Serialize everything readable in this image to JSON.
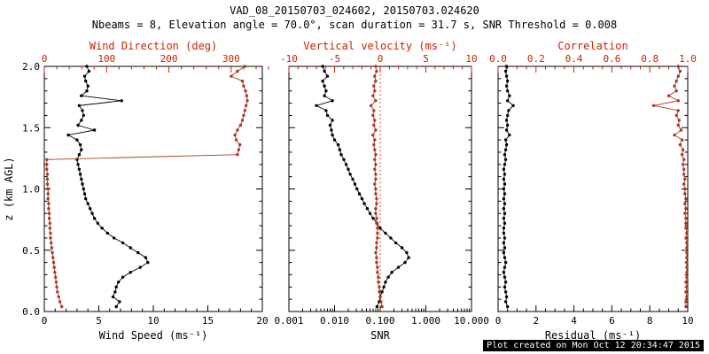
{
  "title": "VAD_08_20150703_024602, 20150703.024620",
  "subtitle": "Nbeams = 8, Elevation angle = 70.0°, scan duration = 31.7 s, SNR Threshold = 0.008",
  "footer": "Plot created on Mon Oct 12 20:34:47 2015",
  "colors": {
    "axis_red": "#cc2200",
    "series_red": "#a83a22",
    "series_black": "#000000",
    "frame": "#000000"
  },
  "chart_data": [
    {
      "type": "scatter",
      "name": "wind",
      "xlabel": "Wind Speed (ms⁻¹)",
      "top_label": "Wind Direction (deg)",
      "ylabel": "z (km AGL)",
      "xscale": "linear",
      "xlim": [
        0,
        20
      ],
      "xticks": [
        0,
        5,
        10,
        15,
        20
      ],
      "xtick_labels": [
        "0",
        "5",
        "10",
        "15",
        "20"
      ],
      "xminor": 5,
      "top_lim": [
        0,
        350
      ],
      "top_ticks": [
        0,
        100,
        200,
        300
      ],
      "top_tick_labels": [
        "0",
        "100",
        "200",
        "300"
      ],
      "top_minor": 5,
      "ylim": [
        0,
        2.0
      ],
      "yticks": [
        0,
        0.5,
        1.0,
        1.5,
        2.0
      ],
      "ytick_labels": [
        "0.0",
        "0.5",
        "1.0",
        "1.5",
        "2.0"
      ],
      "show_ylabels": true,
      "z": [
        0.04,
        0.08,
        0.12,
        0.16,
        0.2,
        0.24,
        0.28,
        0.32,
        0.36,
        0.4,
        0.44,
        0.48,
        0.52,
        0.56,
        0.6,
        0.64,
        0.68,
        0.72,
        0.76,
        0.8,
        0.84,
        0.88,
        0.92,
        0.96,
        1.0,
        1.04,
        1.08,
        1.12,
        1.16,
        1.2,
        1.24,
        1.28,
        1.32,
        1.36,
        1.4,
        1.44,
        1.48,
        1.52,
        1.56,
        1.6,
        1.64,
        1.68,
        1.72,
        1.76,
        1.8,
        1.84,
        1.88,
        1.92,
        1.96,
        2.0
      ],
      "series": [
        {
          "name": "wind-speed",
          "axis": "bottom",
          "color": "#000000",
          "v": [
            6.6,
            6.9,
            6.3,
            6.5,
            6.6,
            6.8,
            7.2,
            7.9,
            8.8,
            9.5,
            9.3,
            8.6,
            7.9,
            7.2,
            6.4,
            5.8,
            5.3,
            4.9,
            4.6,
            4.4,
            4.2,
            4.0,
            3.8,
            3.7,
            3.6,
            3.5,
            3.4,
            3.3,
            3.2,
            3.1,
            3.0,
            3.2,
            3.4,
            3.3,
            3.0,
            2.2,
            4.6,
            3.1,
            3.4,
            3.6,
            3.5,
            3.2,
            7.1,
            3.4,
            3.9,
            4.0,
            3.8,
            3.7,
            4.1,
            3.9
          ]
        },
        {
          "name": "wind-direction",
          "axis": "top",
          "color": "#a83a22",
          "v": [
            28,
            25,
            23,
            21,
            20,
            19,
            18,
            17,
            16,
            15,
            14,
            13,
            12,
            11,
            10,
            10,
            9,
            9,
            8,
            8,
            7,
            7,
            6,
            6,
            6,
            5,
            5,
            5,
            4,
            4,
            4,
            310,
            312,
            314,
            308,
            306,
            310,
            315,
            318,
            320,
            322,
            324,
            326,
            325,
            323,
            320,
            318,
            300,
            310,
            322
          ]
        }
      ]
    },
    {
      "type": "scatter",
      "name": "snr",
      "xlabel": "SNR",
      "top_label": "Vertical velocity (ms⁻¹)",
      "ylabel": "",
      "xscale": "log",
      "xlim": [
        0.001,
        10
      ],
      "xticks": [
        0.001,
        0.01,
        0.1,
        1,
        10
      ],
      "xtick_labels": [
        "0.001",
        "0.010",
        "0.100",
        "1.000",
        "10.000"
      ],
      "top_lim": [
        -10,
        10
      ],
      "top_ticks": [
        -10,
        -5,
        0,
        5,
        10
      ],
      "top_tick_labels": [
        "-10",
        "-5",
        "0",
        "5",
        "10"
      ],
      "top_minor": 5,
      "refline_top": 0,
      "ylim": [
        0,
        2.0
      ],
      "yticks": [
        0,
        0.5,
        1.0,
        1.5,
        2.0
      ],
      "ytick_labels": [
        "0.0",
        "0.5",
        "1.0",
        "1.5",
        "2.0"
      ],
      "show_ylabels": false,
      "z": [
        0.04,
        0.08,
        0.12,
        0.16,
        0.2,
        0.24,
        0.28,
        0.32,
        0.36,
        0.4,
        0.44,
        0.48,
        0.52,
        0.56,
        0.6,
        0.64,
        0.68,
        0.72,
        0.76,
        0.8,
        0.84,
        0.88,
        0.92,
        0.96,
        1.0,
        1.04,
        1.08,
        1.12,
        1.16,
        1.2,
        1.24,
        1.28,
        1.32,
        1.36,
        1.4,
        1.44,
        1.48,
        1.52,
        1.56,
        1.6,
        1.64,
        1.68,
        1.72,
        1.76,
        1.8,
        1.84,
        1.88,
        1.92,
        1.96,
        2.0
      ],
      "series": [
        {
          "name": "snr-profile",
          "axis": "bottom",
          "color": "#000000",
          "v": [
            0.085,
            0.095,
            0.1,
            0.11,
            0.12,
            0.13,
            0.15,
            0.18,
            0.25,
            0.35,
            0.42,
            0.38,
            0.3,
            0.22,
            0.17,
            0.13,
            0.1,
            0.085,
            0.07,
            0.06,
            0.052,
            0.045,
            0.04,
            0.035,
            0.031,
            0.028,
            0.025,
            0.022,
            0.02,
            0.018,
            0.016,
            0.014,
            0.013,
            0.012,
            0.01,
            0.009,
            0.0085,
            0.008,
            0.009,
            0.007,
            0.0065,
            0.004,
            0.009,
            0.006,
            0.0065,
            0.006,
            0.0055,
            0.007,
            0.006,
            0.0055
          ]
        },
        {
          "name": "vertical-velocity",
          "axis": "top",
          "color": "#a83a22",
          "v": [
            0.2,
            0.1,
            0.0,
            -0.1,
            -0.1,
            -0.2,
            -0.2,
            -0.3,
            -0.3,
            -0.4,
            -0.4,
            -0.5,
            -0.4,
            -0.4,
            -0.3,
            -0.3,
            -0.3,
            -0.4,
            -0.4,
            -0.5,
            -0.5,
            -0.4,
            -0.4,
            -0.5,
            -0.5,
            -0.6,
            -0.5,
            -0.5,
            -0.6,
            -0.5,
            -0.6,
            -0.5,
            -0.6,
            -0.7,
            -0.6,
            -0.8,
            -0.5,
            -0.7,
            -0.6,
            -0.8,
            -0.7,
            -1.0,
            -0.5,
            -0.8,
            -0.6,
            -0.7,
            -0.5,
            -0.6,
            -0.4,
            -0.5
          ]
        }
      ]
    },
    {
      "type": "scatter",
      "name": "residual",
      "xlabel": "Residual (ms⁻¹)",
      "top_label": "Correlation",
      "ylabel": "",
      "xscale": "linear",
      "xlim": [
        0,
        10
      ],
      "xticks": [
        0,
        2,
        4,
        6,
        8,
        10
      ],
      "xtick_labels": [
        "0",
        "2",
        "4",
        "6",
        "8",
        "10"
      ],
      "xminor": 4,
      "top_lim": [
        0,
        1
      ],
      "top_ticks": [
        0,
        0.2,
        0.4,
        0.6,
        0.8,
        1.0
      ],
      "top_tick_labels": [
        "0.0",
        "0.2",
        "0.4",
        "0.6",
        "0.8",
        "1.0"
      ],
      "top_minor": 4,
      "ylim": [
        0,
        2.0
      ],
      "yticks": [
        0,
        0.5,
        1.0,
        1.5,
        2.0
      ],
      "ytick_labels": [
        "0.0",
        "0.5",
        "1.0",
        "1.5",
        "2.0"
      ],
      "show_ylabels": false,
      "z": [
        0.04,
        0.08,
        0.12,
        0.16,
        0.2,
        0.24,
        0.28,
        0.32,
        0.36,
        0.4,
        0.44,
        0.48,
        0.52,
        0.56,
        0.6,
        0.64,
        0.68,
        0.72,
        0.76,
        0.8,
        0.84,
        0.88,
        0.92,
        0.96,
        1.0,
        1.04,
        1.08,
        1.12,
        1.16,
        1.2,
        1.24,
        1.28,
        1.32,
        1.36,
        1.4,
        1.44,
        1.48,
        1.52,
        1.56,
        1.6,
        1.64,
        1.68,
        1.72,
        1.76,
        1.8,
        1.84,
        1.88,
        1.92,
        1.96,
        2.0
      ],
      "series": [
        {
          "name": "residual-profile",
          "axis": "bottom",
          "color": "#000000",
          "v": [
            0.5,
            0.4,
            0.45,
            0.4,
            0.35,
            0.4,
            0.35,
            0.3,
            0.35,
            0.4,
            0.35,
            0.3,
            0.35,
            0.3,
            0.35,
            0.3,
            0.3,
            0.35,
            0.3,
            0.35,
            0.3,
            0.35,
            0.3,
            0.35,
            0.3,
            0.35,
            0.3,
            0.35,
            0.3,
            0.35,
            0.4,
            0.35,
            0.4,
            0.45,
            0.4,
            0.6,
            0.45,
            0.5,
            0.45,
            0.5,
            0.55,
            0.8,
            0.5,
            0.6,
            0.5,
            0.45,
            0.5,
            0.45,
            0.4,
            0.45
          ]
        },
        {
          "name": "correlation",
          "axis": "top",
          "color": "#a83a22",
          "v": [
            0.99,
            0.99,
            0.995,
            0.99,
            0.995,
            0.99,
            0.995,
            0.995,
            0.995,
            0.995,
            0.995,
            0.995,
            0.995,
            0.995,
            0.99,
            0.995,
            0.99,
            0.99,
            0.99,
            0.985,
            0.99,
            0.985,
            0.99,
            0.985,
            0.985,
            0.98,
            0.985,
            0.98,
            0.98,
            0.975,
            0.98,
            0.97,
            0.975,
            0.96,
            0.97,
            0.93,
            0.965,
            0.95,
            0.955,
            0.94,
            0.95,
            0.82,
            0.95,
            0.9,
            0.94,
            0.93,
            0.94,
            0.95,
            0.96,
            0.95
          ]
        }
      ]
    }
  ]
}
